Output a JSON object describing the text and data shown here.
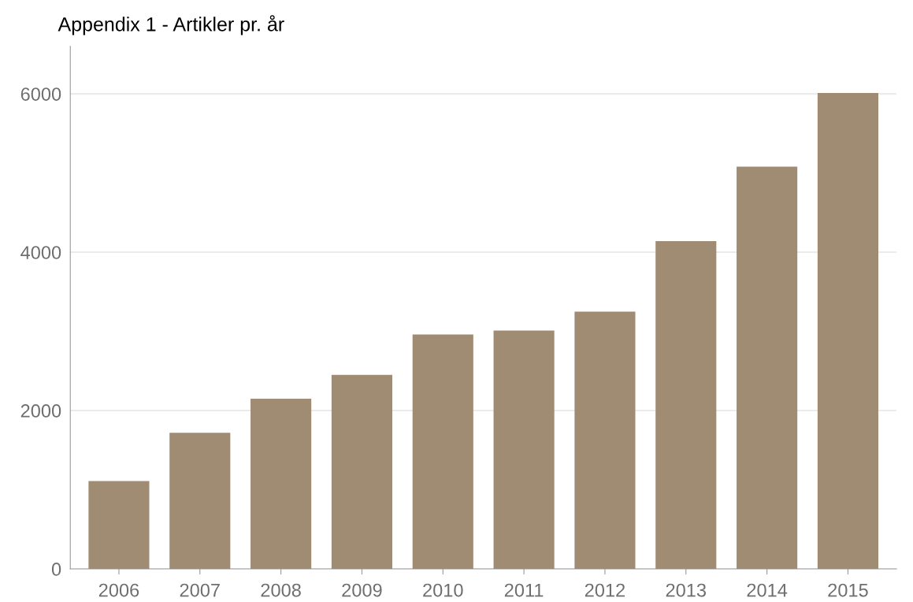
{
  "chart_data": {
    "type": "bar",
    "title": "Appendix 1 - Artikler pr. år",
    "categories": [
      "2006",
      "2007",
      "2008",
      "2009",
      "2010",
      "2011",
      "2012",
      "2013",
      "2014",
      "2015"
    ],
    "values": [
      1110,
      1720,
      2150,
      2450,
      2960,
      3010,
      3250,
      4140,
      5080,
      6010
    ],
    "color": "#a08c72",
    "ylim": [
      0,
      6600
    ],
    "yticks": [
      0,
      2000,
      4000,
      6000
    ],
    "grid": "y"
  }
}
